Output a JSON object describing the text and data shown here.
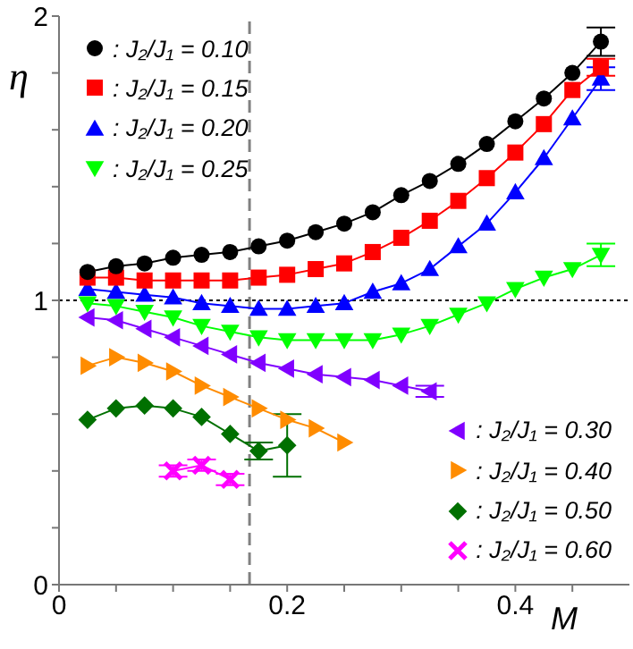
{
  "chart_data": {
    "type": "line",
    "xlabel": "M",
    "ylabel": "η",
    "xlim": [
      0,
      0.5
    ],
    "ylim": [
      0,
      2
    ],
    "xticks": [
      0,
      {
        "value": 0.05,
        "label": null
      },
      {
        "value": 0.1,
        "label": null
      },
      {
        "value": 0.15,
        "label": null
      },
      0.2,
      {
        "value": 0.25,
        "label": null
      },
      {
        "value": 0.3,
        "label": null
      },
      {
        "value": 0.35,
        "label": null
      },
      0.4,
      {
        "value": 0.45,
        "label": null
      }
    ],
    "yticks": [
      0,
      {
        "value": 0.2,
        "label": null
      },
      {
        "value": 0.4,
        "label": null
      },
      {
        "value": 0.6,
        "label": null
      },
      {
        "value": 0.8,
        "label": null
      },
      1,
      {
        "value": 1.2,
        "label": null
      },
      {
        "value": 1.4,
        "label": null
      },
      {
        "value": 1.6,
        "label": null
      },
      {
        "value": 1.8,
        "label": null
      },
      2
    ],
    "legend": "top left",
    "ref_lines": [
      {
        "axis": "x",
        "value": 0.167,
        "color": "#808080",
        "line_style": "dashed"
      },
      {
        "axis": "y",
        "value": 1,
        "color": "#000000",
        "line_style": "dotted"
      }
    ],
    "series": [
      {
        "name": ": J₂/J₁ = 0.10",
        "color": "#000000",
        "marker": "circle",
        "x": [
          0.025,
          0.05,
          0.075,
          0.1,
          0.125,
          0.15,
          0.175,
          0.2,
          0.225,
          0.25,
          0.275,
          0.3,
          0.325,
          0.35,
          0.375,
          0.4,
          0.425,
          0.45,
          0.475
        ],
        "values": [
          1.1,
          1.12,
          1.13,
          1.15,
          1.16,
          1.17,
          1.19,
          1.21,
          1.24,
          1.27,
          1.31,
          1.37,
          1.42,
          1.48,
          1.55,
          1.63,
          1.71,
          1.8,
          1.91
        ],
        "errors": [
          null,
          null,
          null,
          null,
          null,
          null,
          null,
          null,
          null,
          null,
          null,
          null,
          null,
          null,
          null,
          null,
          null,
          null,
          0.05
        ]
      },
      {
        "name": ": J₂/J₁ = 0.15",
        "color": "#ff0000",
        "marker": "square",
        "x": [
          0.025,
          0.05,
          0.075,
          0.1,
          0.125,
          0.15,
          0.175,
          0.2,
          0.225,
          0.25,
          0.275,
          0.3,
          0.325,
          0.35,
          0.375,
          0.4,
          0.425,
          0.45,
          0.475
        ],
        "values": [
          1.08,
          1.08,
          1.07,
          1.07,
          1.07,
          1.07,
          1.08,
          1.09,
          1.11,
          1.13,
          1.17,
          1.22,
          1.28,
          1.35,
          1.43,
          1.52,
          1.62,
          1.74,
          1.82
        ],
        "errors": [
          null,
          null,
          null,
          null,
          null,
          null,
          null,
          null,
          null,
          null,
          null,
          null,
          null,
          null,
          null,
          null,
          null,
          null,
          0.03
        ]
      },
      {
        "name": ": J₂/J₁ = 0.20",
        "color": "#0000ff",
        "marker": "triangle",
        "x": [
          0.025,
          0.05,
          0.075,
          0.1,
          0.125,
          0.15,
          0.175,
          0.2,
          0.225,
          0.25,
          0.275,
          0.3,
          0.325,
          0.35,
          0.375,
          0.4,
          0.425,
          0.45,
          0.475
        ],
        "values": [
          1.04,
          1.03,
          1.02,
          1.01,
          0.99,
          0.98,
          0.97,
          0.97,
          0.98,
          0.99,
          1.03,
          1.06,
          1.11,
          1.19,
          1.27,
          1.38,
          1.5,
          1.64,
          1.78
        ],
        "errors": [
          null,
          null,
          null,
          null,
          null,
          null,
          null,
          null,
          null,
          null,
          null,
          null,
          null,
          null,
          null,
          null,
          null,
          null,
          0.04
        ]
      },
      {
        "name": ": J₂/J₁ = 0.25",
        "color": "#00ff00",
        "marker": "triangle-down",
        "x": [
          0.025,
          0.05,
          0.075,
          0.1,
          0.125,
          0.15,
          0.175,
          0.2,
          0.225,
          0.25,
          0.275,
          0.3,
          0.325,
          0.35,
          0.375,
          0.4,
          0.425,
          0.45,
          0.475
        ],
        "values": [
          0.99,
          0.98,
          0.96,
          0.94,
          0.91,
          0.89,
          0.87,
          0.86,
          0.86,
          0.86,
          0.86,
          0.88,
          0.91,
          0.95,
          0.99,
          1.04,
          1.08,
          1.11,
          1.16
        ],
        "errors": [
          null,
          null,
          null,
          null,
          null,
          null,
          null,
          null,
          null,
          null,
          null,
          null,
          null,
          null,
          null,
          null,
          null,
          null,
          0.04
        ]
      },
      {
        "name": ": J₂/J₁ = 0.30",
        "color": "#8000ff",
        "marker": "triangle-left",
        "x": [
          0.025,
          0.05,
          0.075,
          0.1,
          0.125,
          0.15,
          0.175,
          0.2,
          0.225,
          0.25,
          0.275,
          0.3,
          0.325
        ],
        "values": [
          0.94,
          0.93,
          0.9,
          0.87,
          0.84,
          0.81,
          0.78,
          0.76,
          0.74,
          0.73,
          0.72,
          0.7,
          0.68
        ],
        "errors": [
          null,
          null,
          null,
          null,
          null,
          null,
          null,
          null,
          null,
          null,
          null,
          null,
          0.02
        ]
      },
      {
        "name": ": J₂/J₁ = 0.40",
        "color": "#ff8c00",
        "marker": "triangle-right",
        "x": [
          0.025,
          0.05,
          0.075,
          0.1,
          0.125,
          0.15,
          0.175,
          0.2,
          0.225,
          0.25
        ],
        "values": [
          0.77,
          0.8,
          0.78,
          0.75,
          0.7,
          0.66,
          0.62,
          0.58,
          0.55,
          0.5
        ]
      },
      {
        "name": ": J₂/J₁ = 0.50",
        "color": "#007000",
        "marker": "diamond",
        "x": [
          0.025,
          0.05,
          0.075,
          0.1,
          0.125,
          0.15,
          0.175,
          0.2
        ],
        "values": [
          0.58,
          0.62,
          0.63,
          0.62,
          0.59,
          0.53,
          0.47,
          0.49
        ],
        "errors": [
          null,
          null,
          null,
          null,
          null,
          null,
          0.03,
          0.11
        ]
      },
      {
        "name": ": J₂/J₁ = 0.60",
        "color": "#ff00ff",
        "marker": "cross",
        "x": [
          0.1,
          0.125,
          0.15
        ],
        "values": [
          0.4,
          0.42,
          0.37
        ],
        "errors": [
          0.02,
          0.02,
          0.02
        ]
      }
    ]
  }
}
